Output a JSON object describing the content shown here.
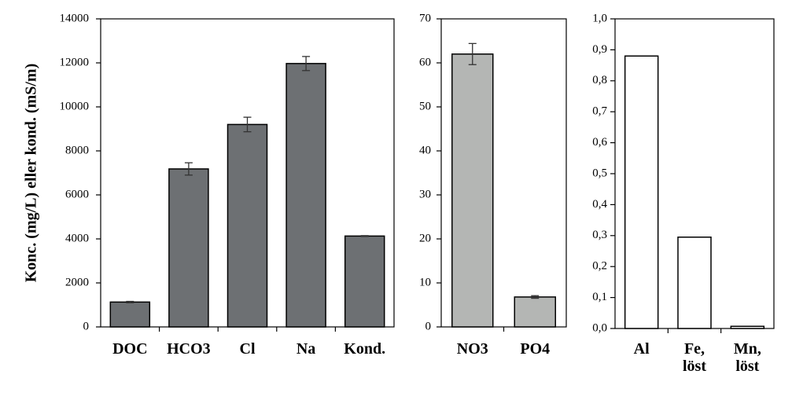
{
  "chart_data": [
    {
      "type": "bar",
      "ylabel": "Konc. (mg/L) eller kond. (mS/m)",
      "ylim": [
        0,
        14000
      ],
      "yticks": [
        "0",
        "2000",
        "4000",
        "6000",
        "8000",
        "10000",
        "12000",
        "14000"
      ],
      "categories": [
        [
          "DOC"
        ],
        [
          "HCO3"
        ],
        [
          "Cl"
        ],
        [
          "Na"
        ],
        [
          "Kond."
        ]
      ],
      "values": [
        1130,
        7180,
        9200,
        11970,
        4130
      ],
      "errors": [
        30,
        280,
        330,
        320,
        20
      ],
      "bar_color": "#6d7073",
      "grid": false
    },
    {
      "type": "bar",
      "ylim": [
        0,
        70
      ],
      "yticks": [
        "0",
        "10",
        "20",
        "30",
        "40",
        "50",
        "60",
        "70"
      ],
      "categories": [
        [
          "NO3"
        ],
        [
          "PO4"
        ]
      ],
      "values": [
        62.0,
        6.8
      ],
      "errors": [
        2.4,
        0.3
      ],
      "bar_color": "#b4b6b4",
      "grid": false
    },
    {
      "type": "bar",
      "ylim": [
        0,
        1.0
      ],
      "yticks": [
        "0,0",
        "0,1",
        "0,2",
        "0,3",
        "0,4",
        "0,5",
        "0,6",
        "0,7",
        "0,8",
        "0,9",
        "1,0"
      ],
      "categories": [
        [
          "Al"
        ],
        [
          "Fe,",
          "löst"
        ],
        [
          "Mn,",
          "löst"
        ]
      ],
      "values": [
        0.88,
        0.295,
        0.007
      ],
      "bar_color": "#ffffff",
      "grid": false
    }
  ]
}
